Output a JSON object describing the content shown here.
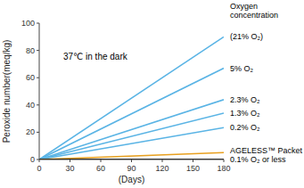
{
  "chart_data": {
    "type": "line",
    "xlabel": "(Days)",
    "ylabel": "Peroxide number(meq/kg)",
    "annotation": "37℃  in the dark",
    "labels_title": [
      "Oxygen",
      "concentration"
    ],
    "x": [
      0,
      180
    ],
    "xlim": [
      0,
      180
    ],
    "ylim": [
      0,
      100
    ],
    "xticks": [
      0,
      30,
      60,
      90,
      120,
      150,
      180
    ],
    "yticks": [
      0,
      20,
      40,
      60,
      80,
      100
    ],
    "grid": false,
    "series": [
      {
        "name": "(21% O₂)",
        "color": "#5ab4e5",
        "values": [
          0,
          90
        ]
      },
      {
        "name": "5% O₂",
        "color": "#5ab4e5",
        "values": [
          0,
          66.96
        ]
      },
      {
        "name": "2.3% O₂",
        "color": "#5ab4e5",
        "values": [
          0,
          43.92
        ]
      },
      {
        "name": "1.3% O₂",
        "color": "#5ab4e5",
        "values": [
          0,
          34.02
        ]
      },
      {
        "name": "0.2% O₂",
        "color": "#5ab4e5",
        "values": [
          0,
          23.4
        ]
      },
      {
        "name": "AGELESS™ Packet",
        "color": "#e8a020",
        "values": [
          0,
          5.04
        ]
      },
      {
        "name": "0.1% O₂ or less",
        "color": "#111111",
        "values": [
          0,
          0
        ]
      }
    ]
  }
}
